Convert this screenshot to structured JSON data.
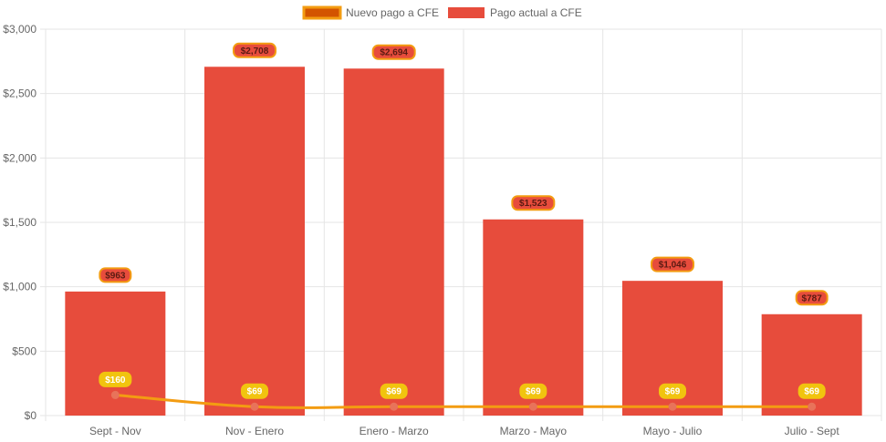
{
  "chart_data": {
    "type": "bar",
    "categories": [
      "Sept - Nov",
      "Nov - Enero",
      "Enero - Marzo",
      "Marzo - Mayo",
      "Mayo - Julio",
      "Julio - Sept"
    ],
    "series": [
      {
        "name": "Nuevo pago a CFE",
        "type": "line",
        "values": [
          160,
          69,
          69,
          69,
          69,
          69
        ],
        "labels": [
          "$160",
          "$69",
          "$69",
          "$69",
          "$69",
          "$69"
        ],
        "color": "#f39c12",
        "point_color": "#e8735a"
      },
      {
        "name": "Pago actual a CFE",
        "type": "bar",
        "values": [
          963,
          2708,
          2694,
          1523,
          1046,
          787
        ],
        "labels": [
          "$963",
          "$2,708",
          "$2,694",
          "$1,523",
          "$1,046",
          "$787"
        ],
        "color": "#e74c3c"
      }
    ],
    "y_ticks": [
      "$0",
      "$500",
      "$1,000",
      "$1,500",
      "$2,000",
      "$2,500",
      "$3,000"
    ],
    "ylim": [
      0,
      3000
    ],
    "grid": true,
    "legend_position": "top-center",
    "colors": {
      "bar": "#e74c3c",
      "line": "#f39c12",
      "bar_label_bg": "#e74c3c",
      "bar_label_border": "#f39c12",
      "line_label_bg": "#f1c40f",
      "grid": "#e5e5e5",
      "legend_line_swatch": "#d35400"
    }
  }
}
